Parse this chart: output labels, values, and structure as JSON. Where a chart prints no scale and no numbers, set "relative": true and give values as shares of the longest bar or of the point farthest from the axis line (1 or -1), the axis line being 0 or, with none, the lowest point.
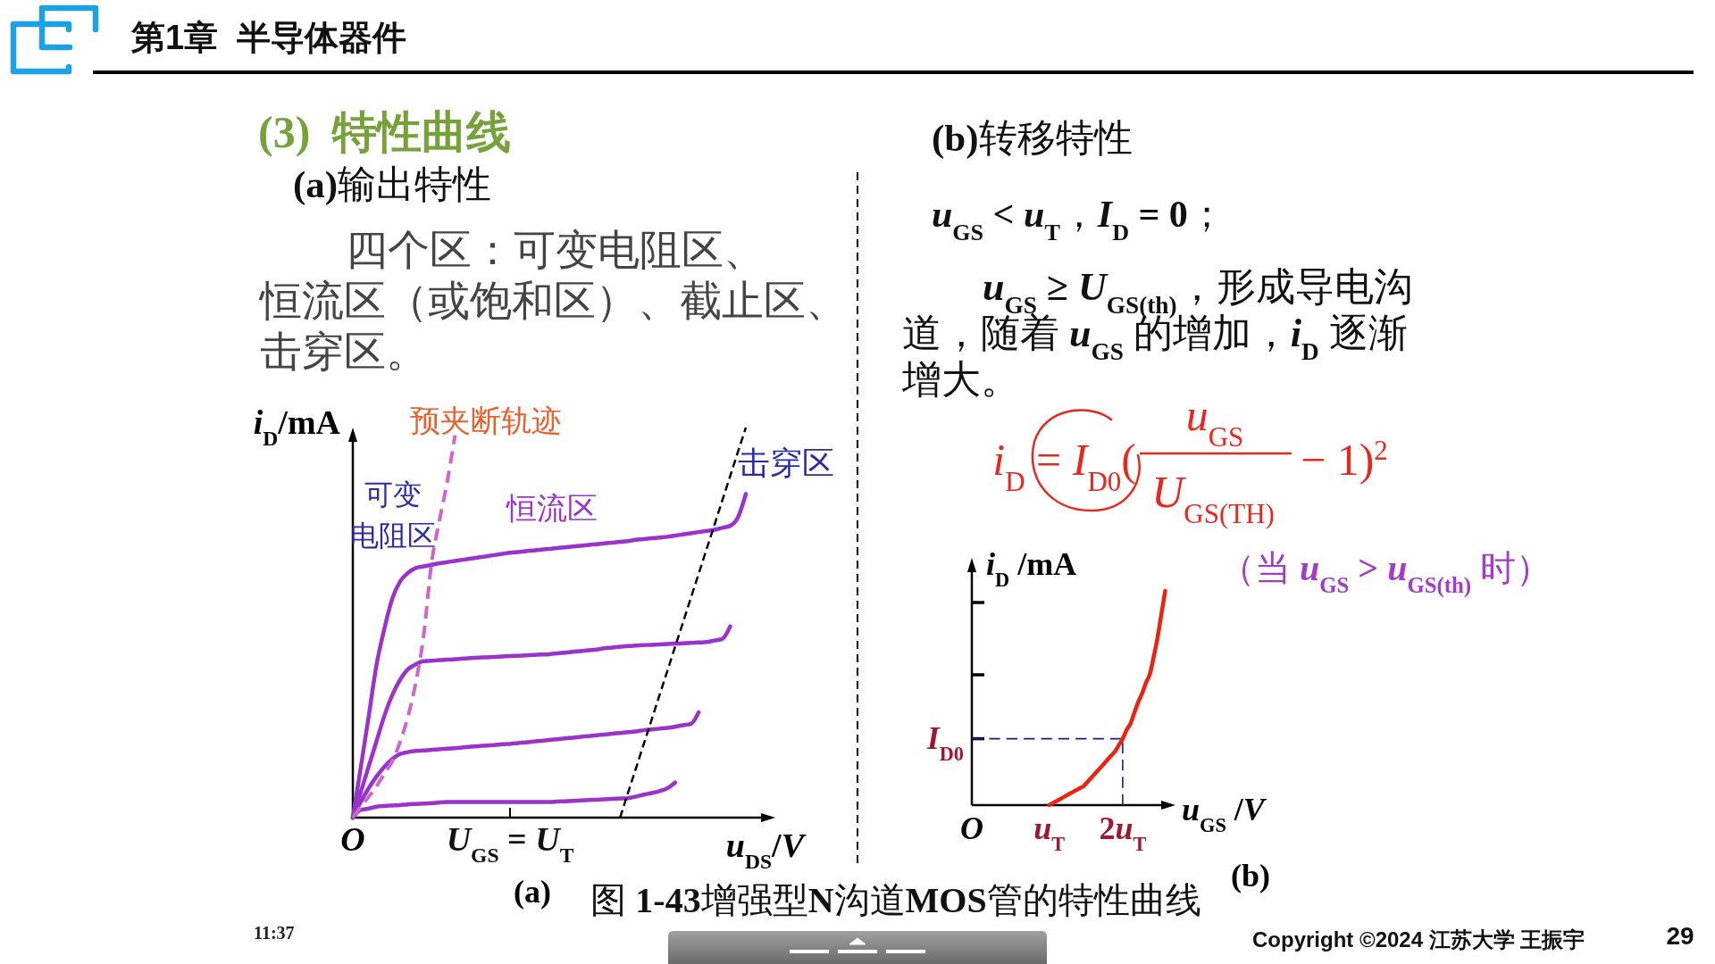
{
  "chart_data": [
    {
      "type": "other",
      "title": "第1章  半导体器件",
      "annotations": [
        "(3)  特性曲线",
        "(a)输出特性",
        "四个区：可变电阻区、恒流区（或饱和区）、截止区、击穿区。",
        "(b)转移特性",
        "u$_{GS}$ < u$_{T}$，I$_{D}$ = 0；",
        "u$_{GS}$ ≥ U$_{GS(th)}$，形成导电沟道，随着 u$_{GS}$ 的增加，i$_{D}$ 逐渐增大。",
        "i$_{D}$ = I$_{D0}$(",
        "u$_{GS}$",
        "U$_{GS(TH)}$",
        "− 1)$^{2}$",
        "(a)",
        "图 1-43增强型N沟道MOS管的特性曲线",
        "(b)",
        "11:37",
        "Copyright ©2024 江苏大学 王振宇",
        "29"
      ]
    },
    {
      "type": "line",
      "relative": true,
      "xlabel": "u$_{DS}$/V",
      "ylabel": "i$_{D}$/mA",
      "annotations": [
        "预夹断轨迹",
        "可变电阻区",
        "恒流区",
        "击穿区"
      ],
      "categories": [
        "O",
        null,
        null,
        null,
        null,
        null,
        null,
        null,
        null,
        null,
        null,
        null,
        null,
        null,
        null,
        null,
        null,
        null,
        null,
        null,
        "U$_{GS}$ = U$_{T}$",
        null,
        null,
        null,
        null,
        null,
        null,
        null,
        null,
        null,
        null,
        null,
        null,
        null,
        null,
        null,
        null,
        null,
        null,
        null,
        null,
        null,
        null,
        null,
        null,
        null,
        null,
        null,
        null,
        null,
        null
      ],
      "series": [
        {
          "color": "#9933cc",
          "values": [
            0,
            0.127,
            0.257,
            0.39,
            0.483,
            0.56,
            0.605,
            0.627,
            0.64,
            0.644,
            0.648,
            0.652,
            0.655,
            0.658,
            0.661,
            0.664,
            0.667,
            0.67,
            0.673,
            0.676,
            0.679,
            0.681,
            0.683,
            0.685,
            0.687,
            0.689,
            0.691,
            0.693,
            0.695,
            0.697,
            0.699,
            0.701,
            0.703,
            0.705,
            0.707,
            0.709,
            0.712,
            0.714,
            0.716,
            0.718,
            0.72,
            0.723,
            0.726,
            0.729,
            0.732,
            0.735,
            0.738,
            0.743,
            0.748,
            0.77,
            0.83
          ]
        },
        {
          "color": "#9933cc",
          "values": [
            0,
            0.065,
            0.13,
            0.195,
            0.26,
            0.313,
            0.353,
            0.38,
            0.393,
            0.401,
            0.402,
            0.404,
            0.405,
            0.406,
            0.408,
            0.409,
            0.41,
            0.411,
            0.412,
            0.413,
            0.414,
            0.415,
            0.416,
            0.417,
            0.418,
            0.419,
            0.421,
            0.423,
            0.425,
            0.427,
            0.429,
            0.431,
            0.434,
            0.436,
            0.438,
            0.44,
            0.441,
            0.442,
            0.443,
            0.444,
            0.445,
            0.446,
            0.447,
            0.448,
            0.449,
            0.45,
            0.454,
            0.458,
            0.49,
            null,
            null
          ]
        },
        {
          "color": "#9933cc",
          "values": [
            0,
            0.04,
            0.075,
            0.105,
            0.13,
            0.15,
            0.163,
            0.168,
            0.171,
            0.172,
            0.174,
            0.175,
            0.177,
            0.178,
            0.18,
            0.182,
            0.183,
            0.185,
            0.186,
            0.188,
            0.189,
            0.191,
            0.193,
            0.195,
            0.197,
            0.199,
            0.201,
            0.203,
            0.205,
            0.207,
            0.209,
            0.211,
            0.213,
            0.215,
            0.217,
            0.219,
            0.221,
            0.224,
            0.226,
            0.228,
            0.23,
            0.233,
            0.237,
            0.24,
            0.27,
            null,
            null,
            null,
            null,
            null,
            null
          ]
        },
        {
          "color": "#9933cc",
          "values": [
            0,
            0.02,
            0.023,
            0.028,
            0.03,
            0.031,
            0.032,
            0.034,
            0.035,
            0.036,
            0.037,
            0.039,
            0.04,
            0.04,
            0.04,
            0.04,
            0.04,
            0.04,
            0.04,
            0.04,
            0.04,
            0.04,
            0.04,
            0.04,
            0.04,
            0.04,
            0.041,
            0.042,
            0.043,
            0.044,
            0.045,
            0.046,
            0.047,
            0.048,
            0.049,
            0.05,
            0.054,
            0.059,
            0.063,
            0.068,
            0.075,
            0.09,
            null,
            null,
            null,
            null,
            null,
            null,
            null,
            null,
            null
          ]
        },
        {
          "color": "#cc66cc",
          "line_style": "dashed",
          "values": [
            0,
            0.027,
            0.053,
            0.08,
            0.112,
            0.144,
            0.193,
            0.258,
            0.345,
            0.465,
            0.65,
            0.76,
            0.86,
            0.98,
            null,
            null,
            null,
            null,
            null,
            null,
            null,
            null,
            null,
            null,
            null,
            null,
            null,
            null,
            null,
            null,
            null,
            null,
            null,
            null,
            null,
            null,
            null,
            null,
            null,
            null,
            null,
            null,
            null,
            null,
            null,
            null,
            null,
            null,
            null,
            null,
            null
          ]
        },
        {
          "color": "#000000",
          "line_style": "dashed",
          "values": [
            null,
            null,
            null,
            null,
            null,
            null,
            null,
            null,
            null,
            null,
            null,
            null,
            null,
            null,
            null,
            null,
            null,
            null,
            null,
            null,
            null,
            null,
            null,
            null,
            null,
            null,
            null,
            null,
            null,
            null,
            null,
            null,
            null,
            null,
            0,
            0.063,
            0.125,
            0.188,
            0.25,
            0.313,
            0.375,
            0.438,
            0.5,
            0.563,
            0.625,
            0.688,
            0.75,
            0.813,
            0.875,
            0.938,
            1
          ]
        }
      ]
    },
    {
      "type": "line",
      "relative": true,
      "xlabel": "u$_{GS}$ /V",
      "ylabel": "i$_{D}$ /mA",
      "annotations": [
        "（当 u$_{GS}$ > u$_{GS(th)}$ 时）"
      ],
      "categories": [
        "O",
        null,
        null,
        null,
        null,
        null,
        null,
        null,
        null,
        null,
        null,
        null,
        null,
        null,
        null,
        null,
        null,
        null,
        null,
        null,
        "u$_{T}$",
        null,
        null,
        null,
        null,
        null,
        null,
        null,
        null,
        null,
        null,
        null,
        null,
        null,
        null,
        null,
        null,
        null,
        null,
        "2u$_{T}$",
        null,
        null,
        null,
        null,
        null,
        null,
        null,
        null,
        null,
        null,
        null
      ],
      "series": [
        {
          "color": "#ee2211",
          "values": [
            null,
            null,
            null,
            null,
            null,
            null,
            null,
            null,
            null,
            null,
            null,
            null,
            null,
            null,
            null,
            null,
            null,
            null,
            null,
            null,
            0,
            0.01,
            0.02,
            0.03,
            0.04,
            0.05,
            0.06,
            0.07,
            0.08,
            0.09,
            0.11,
            0.13,
            0.15,
            0.17,
            0.19,
            0.21,
            0.23,
            0.25,
            0.28,
            0.31,
            0.35,
            0.38,
            0.43,
            0.48,
            0.52,
            0.57,
            0.61,
            0.69,
            0.78,
            0.89,
            1
          ]
        }
      ],
      "ref_lines": [
        {
          "axis": "y",
          "value": 0.31,
          "label": "I$_{D0}$",
          "color": "#1a1a80",
          "line_style": "dashed"
        },
        {
          "axis": "x",
          "value": "2u$_{T}$",
          "color": "#1a1a80",
          "line_style": "dashed"
        }
      ]
    }
  ]
}
